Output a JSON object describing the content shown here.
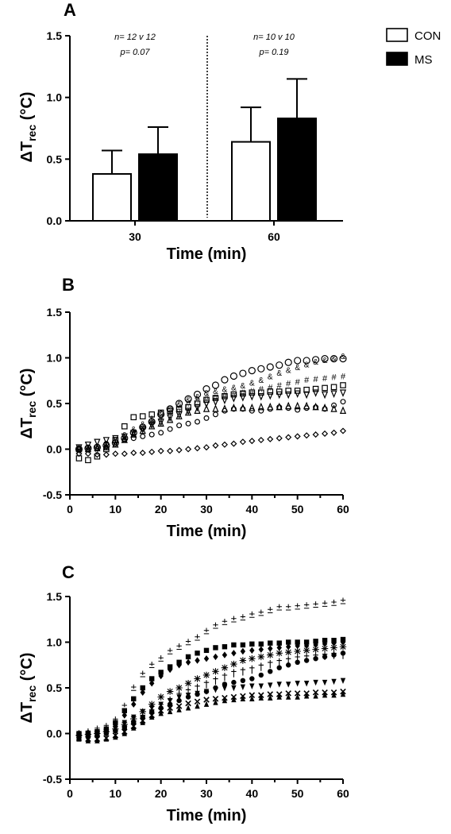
{
  "panels": {
    "A": {
      "letter": "A"
    },
    "B": {
      "letter": "B"
    },
    "C": {
      "letter": "C"
    }
  },
  "legend": {
    "items": [
      {
        "label": "CON",
        "color": "#ffffff"
      },
      {
        "label": "MS",
        "color": "#000000"
      }
    ]
  },
  "chart_data": [
    {
      "type": "bar",
      "panel": "A",
      "categories": [
        "30",
        "60"
      ],
      "series": [
        {
          "name": "CON",
          "values": [
            0.38,
            0.64
          ],
          "errors": [
            0.19,
            0.28
          ],
          "fill": "#ffffff"
        },
        {
          "name": "MS",
          "values": [
            0.54,
            0.83
          ],
          "errors": [
            0.22,
            0.32
          ],
          "fill": "#000000"
        }
      ],
      "xlabel": "Time (min)",
      "ylabel_main": "ΔT",
      "ylabel_sub": "rec",
      "ylabel_unit": " (°C)",
      "ylim": [
        0,
        1.5
      ],
      "yticks": [
        "0.0",
        "0.5",
        "1.0",
        "1.5"
      ],
      "annotations": [
        {
          "lines": [
            "n= 12 v 12",
            "p= 0.07"
          ]
        },
        {
          "lines": [
            "n= 10 v 10",
            "p= 0.19"
          ]
        }
      ],
      "divider": "dotted"
    },
    {
      "type": "scatter",
      "panel": "B",
      "xlabel": "Time (min)",
      "ylabel_main": "ΔT",
      "ylabel_sub": "rec",
      "ylabel_unit": " (°C)",
      "xlim": [
        0,
        60
      ],
      "ylim": [
        -0.5,
        1.5
      ],
      "xticks": [
        "0",
        "10",
        "20",
        "30",
        "40",
        "50",
        "60"
      ],
      "yticks": [
        "-0.5",
        "0.0",
        "0.5",
        "1.0",
        "1.5"
      ],
      "x": [
        2,
        4,
        6,
        8,
        10,
        12,
        14,
        16,
        18,
        20,
        22,
        24,
        26,
        28,
        30,
        32,
        34,
        36,
        38,
        40,
        42,
        44,
        46,
        48,
        50,
        52,
        54,
        56,
        58,
        60
      ],
      "series": [
        {
          "marker": "open-circle-large",
          "values": [
            0.0,
            0.01,
            0.02,
            0.04,
            0.07,
            0.12,
            0.18,
            0.24,
            0.3,
            0.38,
            0.44,
            0.5,
            0.55,
            0.6,
            0.66,
            0.7,
            0.76,
            0.8,
            0.83,
            0.86,
            0.88,
            0.9,
            0.92,
            0.95,
            0.97,
            0.97,
            0.98,
            0.99,
            0.99,
            0.99
          ]
        },
        {
          "marker": "ampersand",
          "values": [
            0.0,
            0.0,
            0.02,
            0.05,
            0.1,
            0.16,
            0.22,
            0.28,
            0.34,
            0.4,
            0.45,
            0.5,
            0.55,
            0.58,
            0.62,
            0.64,
            0.66,
            0.68,
            0.7,
            0.73,
            0.76,
            0.8,
            0.84,
            0.87,
            0.9,
            0.93,
            0.96,
            0.98,
            1.0,
            1.02
          ]
        },
        {
          "marker": "hash",
          "values": [
            -0.02,
            -0.01,
            0.0,
            0.02,
            0.06,
            0.12,
            0.18,
            0.24,
            0.3,
            0.35,
            0.4,
            0.45,
            0.5,
            0.54,
            0.56,
            0.57,
            0.59,
            0.6,
            0.62,
            0.64,
            0.66,
            0.68,
            0.7,
            0.72,
            0.74,
            0.76,
            0.77,
            0.78,
            0.79,
            0.8
          ]
        },
        {
          "marker": "open-square",
          "values": [
            -0.1,
            -0.12,
            -0.08,
            0.0,
            0.1,
            0.25,
            0.35,
            0.36,
            0.38,
            0.4,
            0.42,
            0.44,
            0.46,
            0.5,
            0.54,
            0.56,
            0.58,
            0.6,
            0.61,
            0.62,
            0.62,
            0.63,
            0.63,
            0.64,
            0.64,
            0.65,
            0.66,
            0.67,
            0.68,
            0.7
          ]
        },
        {
          "marker": "open-triangle-up",
          "values": [
            0.0,
            0.0,
            0.01,
            0.02,
            0.05,
            0.1,
            0.16,
            0.2,
            0.25,
            0.28,
            0.32,
            0.36,
            0.4,
            0.42,
            0.44,
            0.44,
            0.44,
            0.45,
            0.45,
            0.45,
            0.46,
            0.46,
            0.46,
            0.47,
            0.47,
            0.47,
            0.46,
            0.45,
            0.44,
            0.42
          ]
        },
        {
          "marker": "open-circle-small",
          "values": [
            0.0,
            0.02,
            0.03,
            0.06,
            0.08,
            0.1,
            0.12,
            0.14,
            0.16,
            0.18,
            0.22,
            0.26,
            0.28,
            0.3,
            0.34,
            0.38,
            0.42,
            0.44,
            0.44,
            0.42,
            0.42,
            0.44,
            0.46,
            0.45,
            0.43,
            0.45,
            0.46,
            0.44,
            0.48,
            0.52
          ]
        },
        {
          "marker": "open-diamond",
          "values": [
            -0.05,
            -0.05,
            -0.06,
            -0.06,
            -0.05,
            -0.05,
            -0.04,
            -0.04,
            -0.03,
            -0.02,
            -0.02,
            -0.01,
            0.0,
            0.01,
            0.02,
            0.04,
            0.05,
            0.06,
            0.08,
            0.09,
            0.1,
            0.11,
            0.12,
            0.13,
            0.14,
            0.15,
            0.16,
            0.17,
            0.18,
            0.2
          ]
        },
        {
          "marker": "open-triangle-down",
          "values": [
            0.02,
            0.05,
            0.08,
            0.1,
            0.12,
            0.14,
            0.18,
            0.22,
            0.27,
            0.3,
            0.35,
            0.38,
            0.42,
            0.46,
            0.5,
            0.52,
            0.54,
            0.56,
            0.57,
            0.58,
            0.58,
            0.59,
            0.6,
            0.6,
            0.61,
            0.6,
            0.62,
            0.6,
            0.61,
            0.62
          ]
        }
      ]
    },
    {
      "type": "scatter",
      "panel": "C",
      "xlabel": "Time (min)",
      "ylabel_main": "ΔT",
      "ylabel_sub": "rec",
      "ylabel_unit": " (°C)",
      "xlim": [
        0,
        60
      ],
      "ylim": [
        -0.5,
        1.5
      ],
      "xticks": [
        "0",
        "10",
        "20",
        "30",
        "40",
        "50",
        "60"
      ],
      "yticks": [
        "-0.5",
        "0.0",
        "0.5",
        "1.0",
        "1.5"
      ],
      "x": [
        2,
        4,
        6,
        8,
        10,
        12,
        14,
        16,
        18,
        20,
        22,
        24,
        26,
        28,
        30,
        32,
        34,
        36,
        38,
        40,
        42,
        44,
        46,
        48,
        50,
        52,
        54,
        56,
        58,
        60
      ],
      "series": [
        {
          "marker": "plusminus",
          "values": [
            0.0,
            0.02,
            0.05,
            0.08,
            0.15,
            0.3,
            0.5,
            0.65,
            0.75,
            0.82,
            0.9,
            0.95,
            1.0,
            1.05,
            1.12,
            1.18,
            1.22,
            1.25,
            1.27,
            1.3,
            1.32,
            1.35,
            1.38,
            1.38,
            1.39,
            1.4,
            1.41,
            1.42,
            1.43,
            1.45
          ]
        },
        {
          "marker": "filled-square",
          "values": [
            0.0,
            0.0,
            0.02,
            0.05,
            0.12,
            0.25,
            0.38,
            0.5,
            0.6,
            0.67,
            0.73,
            0.78,
            0.84,
            0.88,
            0.91,
            0.94,
            0.95,
            0.97,
            0.97,
            0.98,
            0.98,
            0.99,
            0.99,
            1.0,
            1.0,
            1.0,
            1.01,
            1.02,
            1.02,
            1.03
          ]
        },
        {
          "marker": "filled-diamond",
          "values": [
            0.0,
            0.01,
            0.02,
            0.05,
            0.1,
            0.2,
            0.32,
            0.45,
            0.55,
            0.63,
            0.7,
            0.75,
            0.78,
            0.8,
            0.82,
            0.84,
            0.86,
            0.88,
            0.9,
            0.91,
            0.92,
            0.93,
            0.94,
            0.95,
            0.96,
            0.96,
            0.97,
            0.98,
            0.99,
            1.0
          ]
        },
        {
          "marker": "asterisk",
          "values": [
            -0.02,
            -0.01,
            0.0,
            0.02,
            0.05,
            0.1,
            0.16,
            0.24,
            0.32,
            0.4,
            0.46,
            0.5,
            0.55,
            0.6,
            0.64,
            0.68,
            0.72,
            0.76,
            0.8,
            0.82,
            0.84,
            0.86,
            0.88,
            0.89,
            0.9,
            0.91,
            0.92,
            0.93,
            0.94,
            0.95
          ]
        },
        {
          "marker": "dagger",
          "values": [
            -0.03,
            -0.02,
            0.0,
            0.0,
            0.03,
            0.07,
            0.12,
            0.18,
            0.24,
            0.3,
            0.36,
            0.42,
            0.46,
            0.5,
            0.54,
            0.58,
            0.62,
            0.66,
            0.68,
            0.7,
            0.73,
            0.76,
            0.78,
            0.8,
            0.82,
            0.83,
            0.84,
            0.85,
            0.86,
            0.86
          ]
        },
        {
          "marker": "filled-circle",
          "values": [
            -0.05,
            -0.04,
            -0.02,
            0.0,
            0.03,
            0.06,
            0.12,
            0.18,
            0.24,
            0.28,
            0.32,
            0.36,
            0.4,
            0.43,
            0.46,
            0.5,
            0.54,
            0.56,
            0.58,
            0.6,
            0.64,
            0.68,
            0.72,
            0.75,
            0.78,
            0.8,
            0.82,
            0.84,
            0.86,
            0.88
          ]
        },
        {
          "marker": "filled-triangle-down",
          "values": [
            -0.02,
            -0.01,
            0.0,
            0.02,
            0.06,
            0.12,
            0.18,
            0.24,
            0.28,
            0.32,
            0.36,
            0.4,
            0.42,
            0.44,
            0.46,
            0.48,
            0.5,
            0.5,
            0.51,
            0.52,
            0.52,
            0.53,
            0.54,
            0.54,
            0.55,
            0.55,
            0.56,
            0.56,
            0.57,
            0.58
          ]
        },
        {
          "marker": "cross",
          "values": [
            -0.05,
            -0.06,
            -0.06,
            -0.05,
            -0.02,
            0.02,
            0.08,
            0.14,
            0.2,
            0.25,
            0.28,
            0.3,
            0.33,
            0.35,
            0.37,
            0.38,
            0.39,
            0.4,
            0.41,
            0.42,
            0.42,
            0.43,
            0.43,
            0.44,
            0.44,
            0.44,
            0.45,
            0.45,
            0.45,
            0.46
          ]
        },
        {
          "marker": "filled-triangle-up",
          "values": [
            -0.06,
            -0.08,
            -0.08,
            -0.06,
            -0.04,
            0.0,
            0.06,
            0.12,
            0.18,
            0.22,
            0.24,
            0.26,
            0.28,
            0.3,
            0.32,
            0.34,
            0.36,
            0.37,
            0.38,
            0.38,
            0.39,
            0.39,
            0.4,
            0.4,
            0.4,
            0.41,
            0.41,
            0.42,
            0.42,
            0.43
          ]
        }
      ]
    }
  ]
}
